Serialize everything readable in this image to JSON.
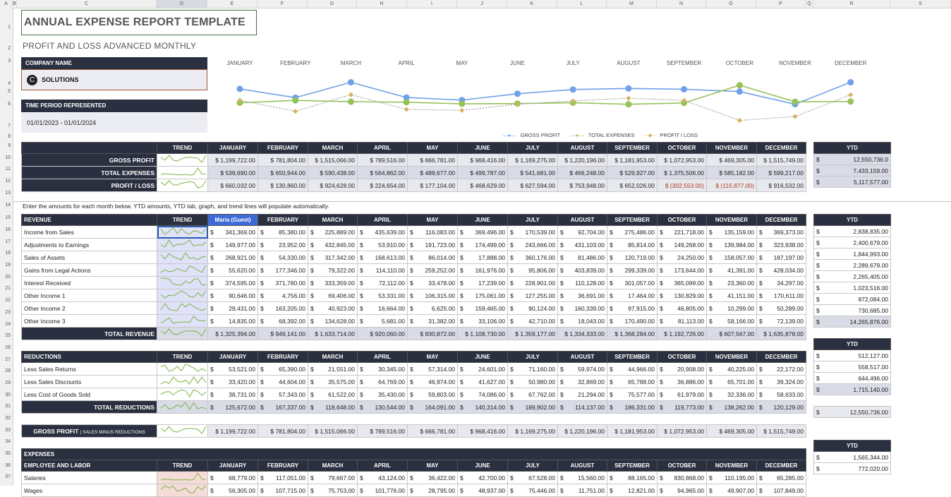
{
  "columns": [
    "A",
    "B",
    "C",
    "D",
    "E",
    "F",
    "G",
    "H",
    "I",
    "J",
    "K",
    "L",
    "M",
    "N",
    "O",
    "P",
    "Q",
    "R",
    "S"
  ],
  "rows": [
    1,
    2,
    3,
    4,
    5,
    6,
    7,
    8,
    9,
    10,
    11,
    12,
    13,
    14,
    15,
    16,
    17,
    18,
    19,
    20,
    21,
    22,
    23,
    24,
    25,
    26,
    27,
    28,
    29,
    30,
    31,
    32,
    33,
    34,
    35,
    36,
    37
  ],
  "title": "ANNUAL EXPENSE REPORT TEMPLATE",
  "subtitle": "PROFIT AND LOSS ADVANCED MONTHLY",
  "company_label": "COMPANY NAME",
  "company_name": "SOLUTIONS",
  "company_logo": "C",
  "period_label": "TIME PERIOD REPRESENTED",
  "period_value": "01/01/2023 - 01/01/2024",
  "months": [
    "JANUARY",
    "FEBRUARY",
    "MARCH",
    "APRIL",
    "MAY",
    "JUNE",
    "JULY",
    "AUGUST",
    "SEPTEMBER",
    "OCTOBER",
    "NOVEMBER",
    "DECEMBER"
  ],
  "header_months": [
    "JANUARY",
    "FEBRUARY",
    "MARCH",
    "APRIL",
    "MAY",
    "JUNE",
    "JULY",
    "AUGUST",
    "SEPTEMBER",
    "OCTOBER",
    "NOVEMBER",
    "DECEMBER"
  ],
  "trend_label": "TREND",
  "ytd_label": "YTD",
  "guest_label": "Maria (Guest)",
  "colors": {
    "gross": "#6fa0e8",
    "expenses": "#96c25a",
    "profit": "#d9b25e",
    "dark": "#2b3040"
  },
  "chart_data": {
    "type": "line",
    "x": [
      "JANUARY",
      "FEBRUARY",
      "MARCH",
      "APRIL",
      "MAY",
      "JUNE",
      "JULY",
      "AUGUST",
      "SEPTEMBER",
      "OCTOBER",
      "NOVEMBER",
      "DECEMBER"
    ],
    "series": [
      {
        "name": "GROSS PROFIT",
        "values": [
          1199722,
          781804,
          1515066,
          789516,
          666781,
          968416,
          1169275,
          1220196,
          1181953,
          1072953,
          469305,
          1515749
        ]
      },
      {
        "name": "TOTAL EXPENSES",
        "values": [
          539690,
          650944,
          590438,
          564862,
          489677,
          499787,
          541681,
          466248,
          529927,
          1375506,
          585182,
          599217
        ]
      },
      {
        "name": "PROFIT / LOSS",
        "values": [
          660032,
          130860,
          924628,
          224654,
          177104,
          468629,
          627594,
          753948,
          652026,
          -302553,
          -115877,
          916532
        ]
      }
    ],
    "legend": "bottom-right"
  },
  "summary": {
    "rows": [
      {
        "name": "GROSS PROFIT",
        "vals": [
          "$ 1,199,722.00",
          "$ 781,804.00",
          "$ 1,515,066.00",
          "$ 789,516.00",
          "$ 666,781.00",
          "$ 968,416.00",
          "$ 1,169,275.00",
          "$ 1,220,196.00",
          "$ 1,181,953.00",
          "$ 1,072,953.00",
          "$ 469,305.00",
          "$ 1,515,749.00"
        ],
        "ytd": "12,550,736.0"
      },
      {
        "name": "TOTAL EXPENSES",
        "vals": [
          "$ 539,690.00",
          "$ 650,944.00",
          "$ 590,438.00",
          "$ 564,862.00",
          "$ 489,677.00",
          "$ 499,787.00",
          "$ 541,681.00",
          "$ 466,248.00",
          "$ 529,927.00",
          "$ 1,375,506.00",
          "$ 585,182.00",
          "$ 599,217.00"
        ],
        "ytd": "7,433,159.00"
      },
      {
        "name": "PROFIT / LOSS",
        "vals": [
          "$ 660,032.00",
          "$ 130,860.00",
          "$ 924,628.00",
          "$ 224,654.00",
          "$ 177,104.00",
          "$ 468,629.00",
          "$ 627,594.00",
          "$ 753,948.00",
          "$ 652,026.00",
          "$ (302,553.00)",
          "$ (115,877.00)",
          "$ 916,532.00"
        ],
        "ytd": "5,117,577.00"
      }
    ]
  },
  "note": "Enter the amounts for each month below. YTD amounts, YTD tab, graph, and trend lines will populate automatically.",
  "revenue": {
    "header": "REVENUE",
    "rows": [
      {
        "name": "Income from Sales",
        "vals": [
          "341,369.00",
          "85,380.00",
          "225,889.00",
          "435,639.00",
          "116,083.00",
          "369,496.00",
          "170,539.00",
          "92,704.00",
          "275,486.00",
          "221,718.00",
          "135,159.00",
          "369,373.00"
        ],
        "ytd": "2,838,835.00"
      },
      {
        "name": "Adjustments to Earnings",
        "vals": [
          "149,977.00",
          "23,952.00",
          "432,845.00",
          "53,910.00",
          "191,723.00",
          "174,499.00",
          "243,666.00",
          "431,103.00",
          "85,814.00",
          "149,268.00",
          "139,984.00",
          "323,938.00"
        ],
        "ytd": "2,400,679.00"
      },
      {
        "name": "Sales of Assets",
        "vals": [
          "268,921.00",
          "54,330.00",
          "317,342.00",
          "168,613.00",
          "86,014.00",
          "17,888.00",
          "360,176.00",
          "81,486.00",
          "120,719.00",
          "24,250.00",
          "158,057.00",
          "187,197.00"
        ],
        "ytd": "1,844,993.00"
      },
      {
        "name": "Gains from Legal Actions",
        "vals": [
          "55,620.00",
          "177,346.00",
          "79,322.00",
          "114,110.00",
          "259,252.00",
          "161,976.00",
          "95,806.00",
          "403,839.00",
          "299,339.00",
          "173,644.00",
          "41,391.00",
          "428,034.00"
        ],
        "ytd": "2,289,679.00"
      },
      {
        "name": "Interest Received",
        "vals": [
          "374,595.00",
          "371,780.00",
          "333,359.00",
          "72,112.00",
          "33,478.00",
          "17,239.00",
          "228,901.00",
          "110,128.00",
          "301,057.00",
          "365,099.00",
          "23,360.00",
          "34,297.00"
        ],
        "ytd": "2,265,405.00"
      },
      {
        "name": "Other Income 1",
        "vals": [
          "90,646.00",
          "4,756.00",
          "69,406.00",
          "53,331.00",
          "106,315.00",
          "175,061.00",
          "127,255.00",
          "36,691.00",
          "17,464.00",
          "130,829.00",
          "41,151.00",
          "170,611.00"
        ],
        "ytd": "1,023,516.00"
      },
      {
        "name": "Other Income 2",
        "vals": [
          "29,431.00",
          "163,205.00",
          "40,923.00",
          "16,664.00",
          "6,625.00",
          "159,465.00",
          "90,124.00",
          "160,339.00",
          "97,915.00",
          "46,805.00",
          "10,299.00",
          "50,289.00"
        ],
        "ytd": "872,084.00"
      },
      {
        "name": "Other Income 3",
        "vals": [
          "14,835.00",
          "68,392.00",
          "134,628.00",
          "5,681.00",
          "31,382.00",
          "33,106.00",
          "42,710.00",
          "18,043.00",
          "170,490.00",
          "81,113.00",
          "58,166.00",
          "72,139.00"
        ],
        "ytd": "730,685.00"
      }
    ],
    "total": {
      "name": "TOTAL REVENUE",
      "vals": [
        "$ 1,325,394.00",
        "$ 949,141.00",
        "$ 1,633,714.00",
        "$ 920,060.00",
        "$ 830,872.00",
        "$ 1,108,730.00",
        "$ 1,359,177.00",
        "$ 1,334,333.00",
        "$ 1,368,284.00",
        "$ 1,192,726.00",
        "$ 607,567.00",
        "$ 1,635,878.00"
      ],
      "ytd": "14,265,876.00"
    }
  },
  "reductions": {
    "header": "REDUCTIONS",
    "rows": [
      {
        "name": "Less Sales Returns",
        "vals": [
          "53,521.00",
          "65,390.00",
          "21,551.00",
          "30,345.00",
          "57,314.00",
          "24,601.00",
          "71,160.00",
          "59,974.00",
          "44,966.00",
          "20,908.00",
          "40,225.00",
          "22,172.00"
        ],
        "ytd": "512,127.00"
      },
      {
        "name": "Less Sales Discounts",
        "vals": [
          "33,420.00",
          "44,604.00",
          "35,575.00",
          "64,769.00",
          "46,974.00",
          "41,627.00",
          "50,980.00",
          "32,869.00",
          "65,788.00",
          "36,886.00",
          "65,701.00",
          "39,324.00"
        ],
        "ytd": "558,517.00"
      },
      {
        "name": "Less Cost of Goods Sold",
        "vals": [
          "38,731.00",
          "57,343.00",
          "61,522.00",
          "35,430.00",
          "59,803.00",
          "74,086.00",
          "67,762.00",
          "21,294.00",
          "75,577.00",
          "61,979.00",
          "32,336.00",
          "58,633.00"
        ],
        "ytd": "644,496.00"
      }
    ],
    "total": {
      "name": "TOTAL REDUCTIONS",
      "vals": [
        "125,672.00",
        "167,337.00",
        "118,648.00",
        "130,544.00",
        "164,091.00",
        "140,314.00",
        "189,902.00",
        "114,137.00",
        "186,331.00",
        "119,773.00",
        "138,262.00",
        "120,129.00"
      ],
      "ytd": "1,715,140.00"
    }
  },
  "gross": {
    "name": "GROSS PROFIT",
    "sub": "SALES MINUS REDUCTIONS",
    "vals": [
      "$ 1,199,722.00",
      "$ 781,804.00",
      "$ 1,515,066.00",
      "$ 789,516.00",
      "$ 666,781.00",
      "$ 968,416.00",
      "$ 1,169,275.00",
      "$ 1,220,196.00",
      "$ 1,181,953.00",
      "$ 1,072,953.00",
      "$ 469,305.00",
      "$ 1,515,749.00"
    ],
    "ytd": "12,550,736.00"
  },
  "expenses": {
    "header": "EXPENSES",
    "subheader": "EMPLOYEE AND LABOR",
    "rows": [
      {
        "name": "Salaries",
        "vals": [
          "68,779.00",
          "117,051.00",
          "79,667.00",
          "43,124.00",
          "36,422.00",
          "42,700.00",
          "67,528.00",
          "15,560.00",
          "88,165.00",
          "830,868.00",
          "110,195.00",
          "65,285.00"
        ],
        "ytd": "1,565,344.00"
      },
      {
        "name": "Wages",
        "vals": [
          "56,305.00",
          "107,715.00",
          "75,753.00",
          "101,776.00",
          "28,795.00",
          "48,937.00",
          "75,446.00",
          "11,751.00",
          "12,821.00",
          "94,965.00",
          "49,907.00",
          "107,849.00"
        ],
        "ytd": "772,020.00"
      }
    ]
  }
}
